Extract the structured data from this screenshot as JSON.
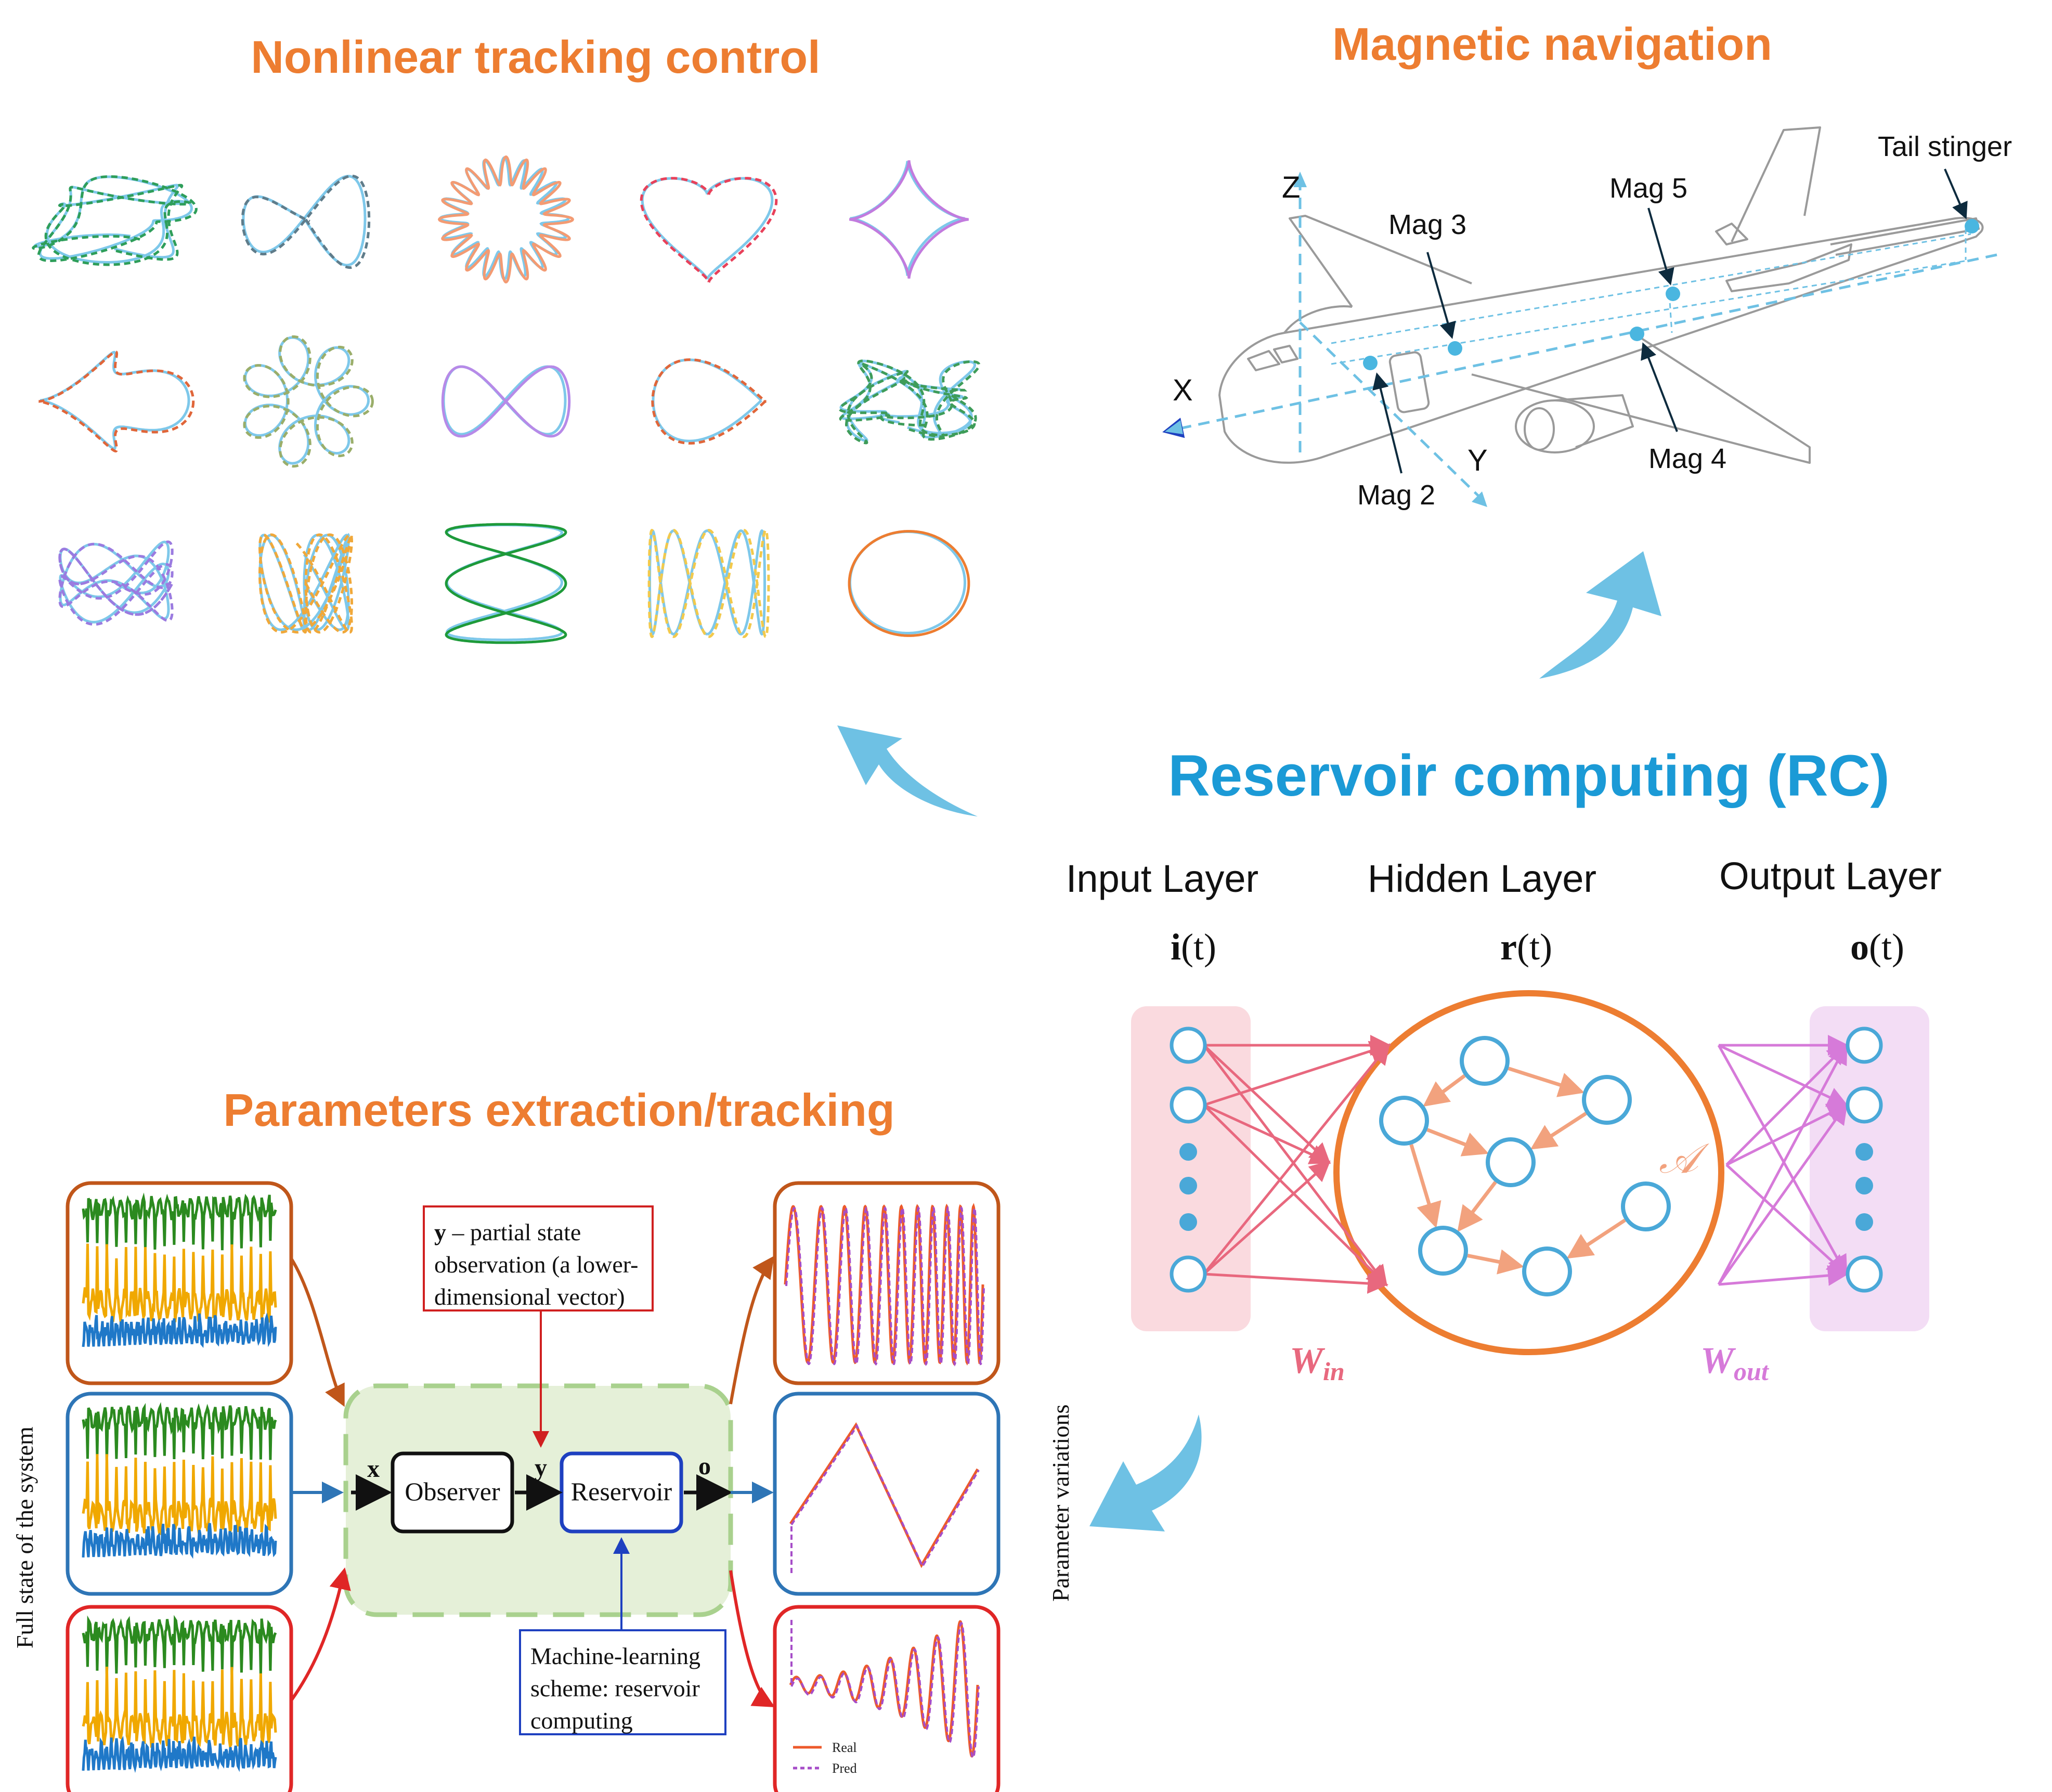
{
  "sections": {
    "tracking_title": "Nonlinear tracking control",
    "magnetic_title": "Magnetic navigation",
    "rc_title": "Reservoir computing (RC)",
    "params_title": "Parameters extraction/tracking"
  },
  "colors": {
    "orange_title": "#ED7D31",
    "rc_blue": "#1B9AD6",
    "arrow_blue": "#6EC1E4",
    "node_blue": "#4AA8D8",
    "win_pink": "#E8687E",
    "wout_violet": "#D67AD9",
    "reservoir_orange": "#ED7D31",
    "edge_salmon": "#F2A27E"
  },
  "rc": {
    "input_layer": "Input Layer",
    "hidden_layer": "Hidden Layer",
    "output_layer": "Output Layer",
    "input_vec_bold": "i",
    "hidden_vec_bold": "r",
    "output_vec_bold": "o",
    "time_arg": "(t)",
    "adjacency": "𝒜",
    "w_in_base": "W",
    "w_in_sub": "in",
    "w_out_base": "W",
    "w_out_sub": "out"
  },
  "plane": {
    "axis_x": "X",
    "axis_y": "Y",
    "axis_z": "Z",
    "mag2": "Mag 2",
    "mag3": "Mag 3",
    "mag4": "Mag 4",
    "mag5": "Mag 5",
    "tail": "Tail stinger"
  },
  "params": {
    "full_state_label": "Full state of the system",
    "param_variations": "Parameter variations",
    "x_label": "x",
    "y_label": "y",
    "o_label": "o",
    "observer": "Observer",
    "reservoir": "Reservoir",
    "note_y_bold": "y",
    "note_y_line1": " – partial state",
    "note_y_line2": "observation (a lower-",
    "note_y_line3": "dimensional vector)",
    "note_ml_line1": "Machine-learning",
    "note_ml_line2": "scheme: reservoir",
    "note_ml_line3": "computing",
    "legend_real": "Real",
    "legend_pred": "Pred"
  },
  "trajectories": [
    {
      "id": "lorenz-green",
      "color": "#2E9E5A"
    },
    {
      "id": "infinity-gray",
      "color": "#5F7C8A"
    },
    {
      "id": "torus-salmon",
      "color": "#F39B73"
    },
    {
      "id": "heart-red",
      "color": "#E8415A"
    },
    {
      "id": "astroid-violet",
      "color": "#C27BDE"
    },
    {
      "id": "mackey-red",
      "color": "#E0663A"
    },
    {
      "id": "rose-olive",
      "color": "#9AAE6A"
    },
    {
      "id": "lemniscate-violet",
      "color": "#B78AE8"
    },
    {
      "id": "teardrop-orange",
      "color": "#E0663A"
    },
    {
      "id": "chaos-green",
      "color": "#3E9C59"
    },
    {
      "id": "knot-violet",
      "color": "#9B7BE0"
    },
    {
      "id": "butterfly-orange",
      "color": "#F0A83A"
    },
    {
      "id": "lissajous-green",
      "color": "#1E9A3A"
    },
    {
      "id": "zigzag-yellow",
      "color": "#F2C94C"
    },
    {
      "id": "circle-orange",
      "color": "#ED7D31"
    }
  ]
}
